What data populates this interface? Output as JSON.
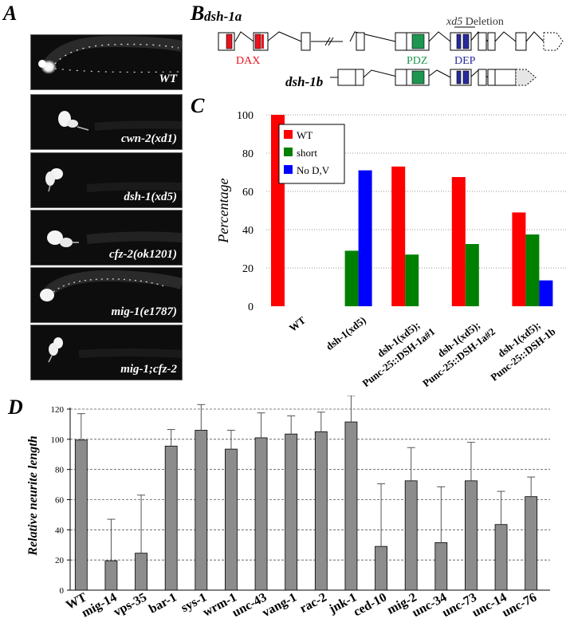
{
  "panels": {
    "a": "A",
    "b": "B",
    "c": "C",
    "d": "D"
  },
  "panel_a": {
    "micrographs": [
      {
        "label": "WT"
      },
      {
        "label": "cwn-2(xd1)"
      },
      {
        "label": "dsh-1(xd5)"
      },
      {
        "label": "cfz-2(ok1201)"
      },
      {
        "label": "mig-1(e1787)"
      },
      {
        "label": "mig-1;cfz-2"
      }
    ]
  },
  "panel_b": {
    "isoform_a": "dsh-1a",
    "isoform_b": "dsh-1b",
    "deletion_name": "xd5",
    "deletion_word": " Deletion",
    "domains": {
      "dax": "DAX",
      "pdz": "PDZ",
      "dep": "DEP"
    },
    "colors": {
      "dax": "#e8141e",
      "pdz": "#1e9650",
      "dep": "#2a2a9e"
    }
  },
  "chart_data": [
    {
      "type": "bar",
      "ylabel": "Percentage",
      "ylim": [
        0,
        100
      ],
      "yticks": [
        0,
        20,
        40,
        60,
        80,
        100
      ],
      "grid": true,
      "legend_placement": "top-left",
      "categories": [
        [
          "WT"
        ],
        [
          "dsh-1(xd5)"
        ],
        [
          "dsh-1(xd5);",
          "Punc-25::DSH-1a#1"
        ],
        [
          "dsh-1(xd5);",
          "Punc-25::DSH-1a#2"
        ],
        [
          "dsh-1(xd5);",
          "Punc-25::DSH-1b"
        ]
      ],
      "series": [
        {
          "name": "WT",
          "color": "#ff0000",
          "values": [
            100,
            0,
            73,
            67.5,
            49
          ]
        },
        {
          "name": "short",
          "color": "#008000",
          "values": [
            0,
            29,
            27,
            32.5,
            37.5
          ]
        },
        {
          "name": "No D,V",
          "color": "#0000ff",
          "values": [
            0,
            71,
            0,
            0,
            13.5
          ]
        }
      ]
    },
    {
      "type": "bar",
      "ylabel": "Relative neurite length",
      "ylim": [
        0,
        120
      ],
      "yticks": [
        0,
        20,
        40,
        60,
        80,
        100,
        120
      ],
      "grid": true,
      "bar_color": "#8c8c8c",
      "categories": [
        "WT",
        "mig-14",
        "vps-35",
        "bar-1",
        "sys-1",
        "wrm-1",
        "unc-43",
        "vang-1",
        "rac-2",
        "jnk-1",
        "ced-10",
        "mig-2",
        "unc-34",
        "unc-73",
        "unc-14",
        "unc-76"
      ],
      "values": [
        99.5,
        19.5,
        24.5,
        95.5,
        106,
        93.5,
        101,
        103.5,
        105,
        111.5,
        29,
        72.5,
        31.5,
        72.5,
        43.5,
        62
      ],
      "errors": [
        17.5,
        27.5,
        38.5,
        11,
        17,
        12.5,
        16.5,
        12,
        13,
        17.5,
        41.5,
        22,
        37,
        25.5,
        22,
        13
      ]
    }
  ]
}
